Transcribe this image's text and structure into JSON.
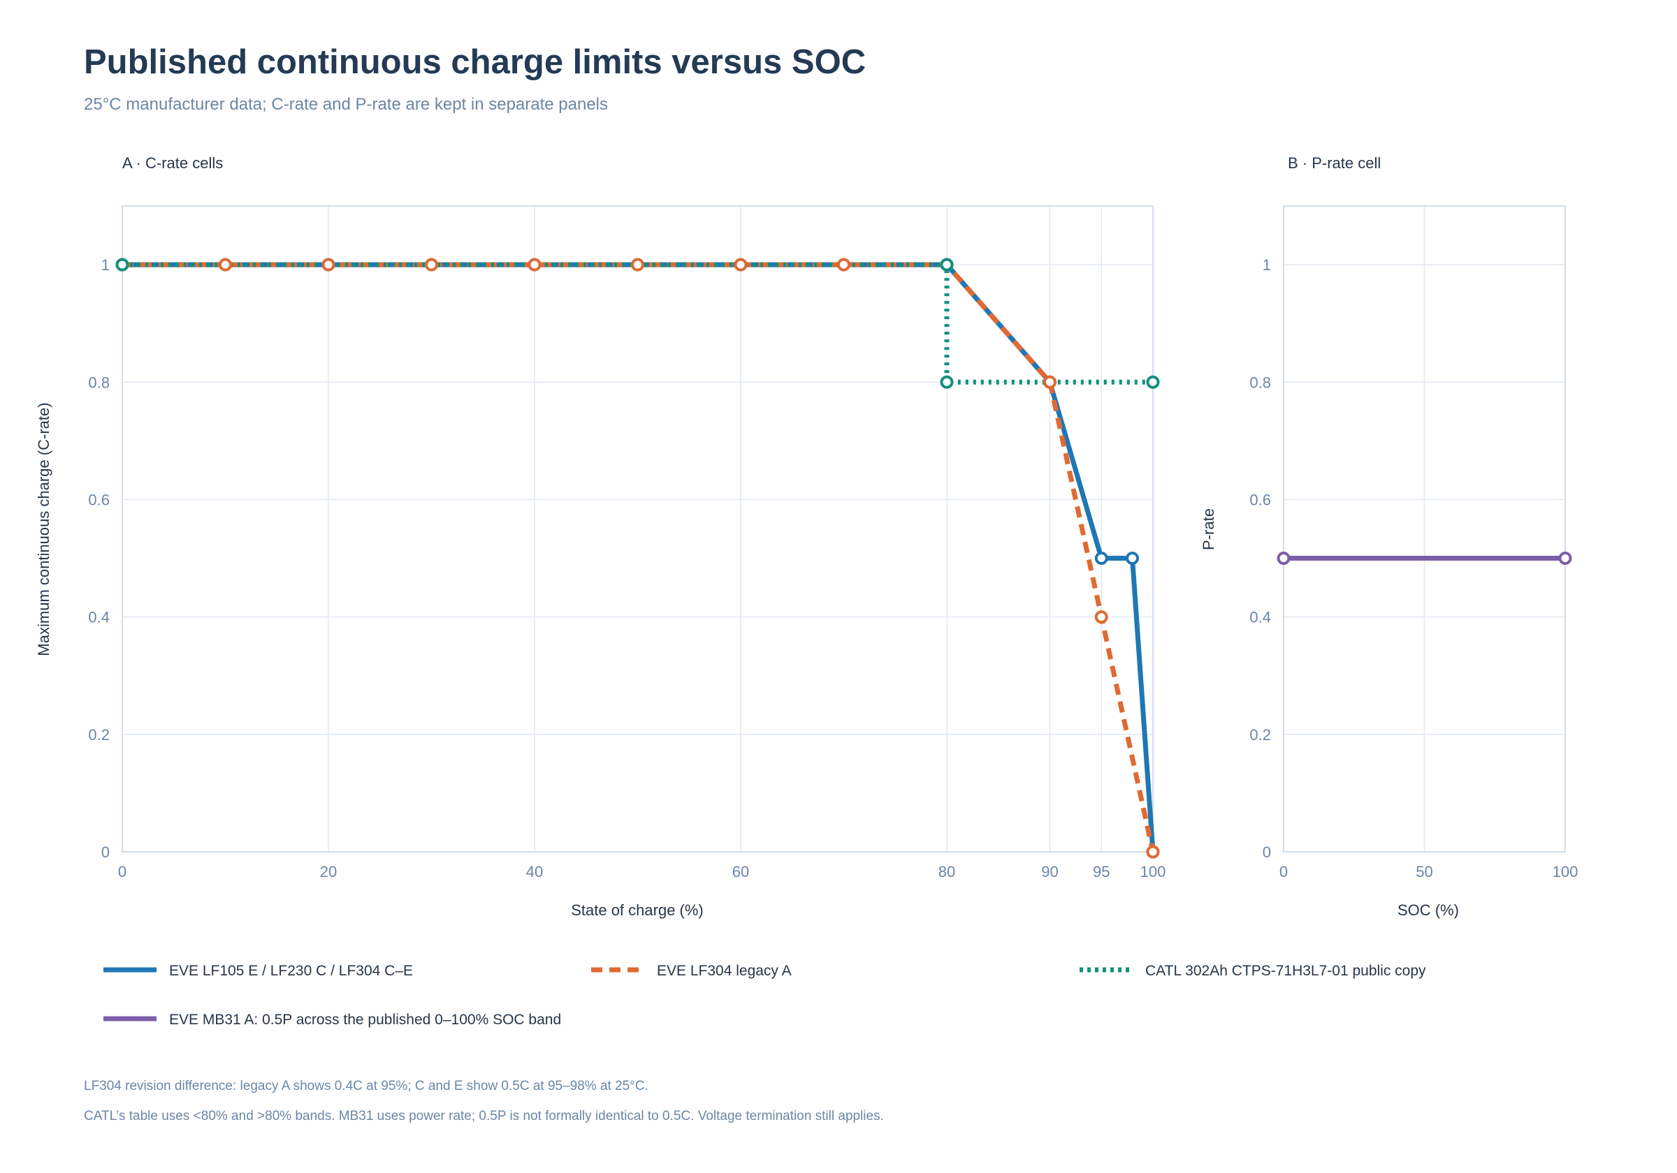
{
  "header": {
    "title": "Published continuous charge limits versus SOC",
    "subtitle": "25°C manufacturer data; C-rate and P-rate are kept in separate panels"
  },
  "colors": {
    "blue": "#1f77b4",
    "orange": "#e06a33",
    "teal": "#12907e",
    "purple": "#7b5ea7",
    "grid": "#e1e8f1",
    "text_dark": "#243a55",
    "text_muted": "#6b86a6"
  },
  "notes": [
    "LF304 revision difference: legacy A shows 0.4C at 95%; C and E show 0.5C at 95–98% at 25°C.",
    "CATL’s table uses <80% and >80% bands. MB31 uses power rate; 0.5P is not formally identical to 0.5C. Voltage termination still applies."
  ],
  "chart_data": [
    {
      "type": "line",
      "title": "A · C-rate cells",
      "xlabel": "State of charge (%)",
      "ylabel": "Maximum continuous charge (C-rate)",
      "xlim": [
        0,
        100
      ],
      "ylim": [
        0,
        1.1
      ],
      "xticks": [
        0,
        20,
        40,
        60,
        80,
        90,
        95,
        100
      ],
      "yticks": [
        0,
        0.2,
        0.4,
        0.6,
        0.8,
        1
      ],
      "ytick_labels": [
        "0",
        "0.2",
        "0.4",
        "0.6",
        "0.8",
        "1"
      ],
      "grid": true,
      "series": [
        {
          "name": "EVE LF105 E / LF230 C / LF304 C–E",
          "color": "#1f77b4",
          "style": "solid",
          "x": [
            0,
            10,
            20,
            30,
            40,
            50,
            60,
            70,
            80,
            90,
            95,
            98,
            100
          ],
          "y": [
            1,
            1,
            1,
            1,
            1,
            1,
            1,
            1,
            1,
            0.8,
            0.5,
            0.5,
            0
          ]
        },
        {
          "name": "EVE LF304 legacy A",
          "color": "#e06a33",
          "style": "dashed",
          "x": [
            0,
            10,
            20,
            30,
            40,
            50,
            60,
            70,
            80,
            90,
            95,
            100
          ],
          "y": [
            1,
            1,
            1,
            1,
            1,
            1,
            1,
            1,
            1,
            0.8,
            0.4,
            0
          ]
        },
        {
          "name": "CATL 302Ah CTPS-71H3L7-01 public copy",
          "color": "#12907e",
          "style": "dotted",
          "x": [
            0,
            80,
            80,
            100
          ],
          "y": [
            1,
            1,
            0.8,
            0.8
          ]
        }
      ]
    },
    {
      "type": "line",
      "title": "B · P-rate cell",
      "xlabel": "SOC (%)",
      "ylabel": "P-rate",
      "xlim": [
        0,
        100
      ],
      "ylim": [
        0,
        1.1
      ],
      "xticks": [
        0,
        50,
        100
      ],
      "yticks": [
        0,
        0.2,
        0.4,
        0.6,
        0.8,
        1
      ],
      "ytick_labels": [
        "0",
        "0.2",
        "0.4",
        "0.6",
        "0.8",
        "1"
      ],
      "grid": true,
      "series": [
        {
          "name": "EVE MB31 A: 0.5P across the published 0–100% SOC band",
          "color": "#7b5ea7",
          "style": "solid",
          "x": [
            0,
            100
          ],
          "y": [
            0.5,
            0.5
          ]
        }
      ]
    }
  ]
}
